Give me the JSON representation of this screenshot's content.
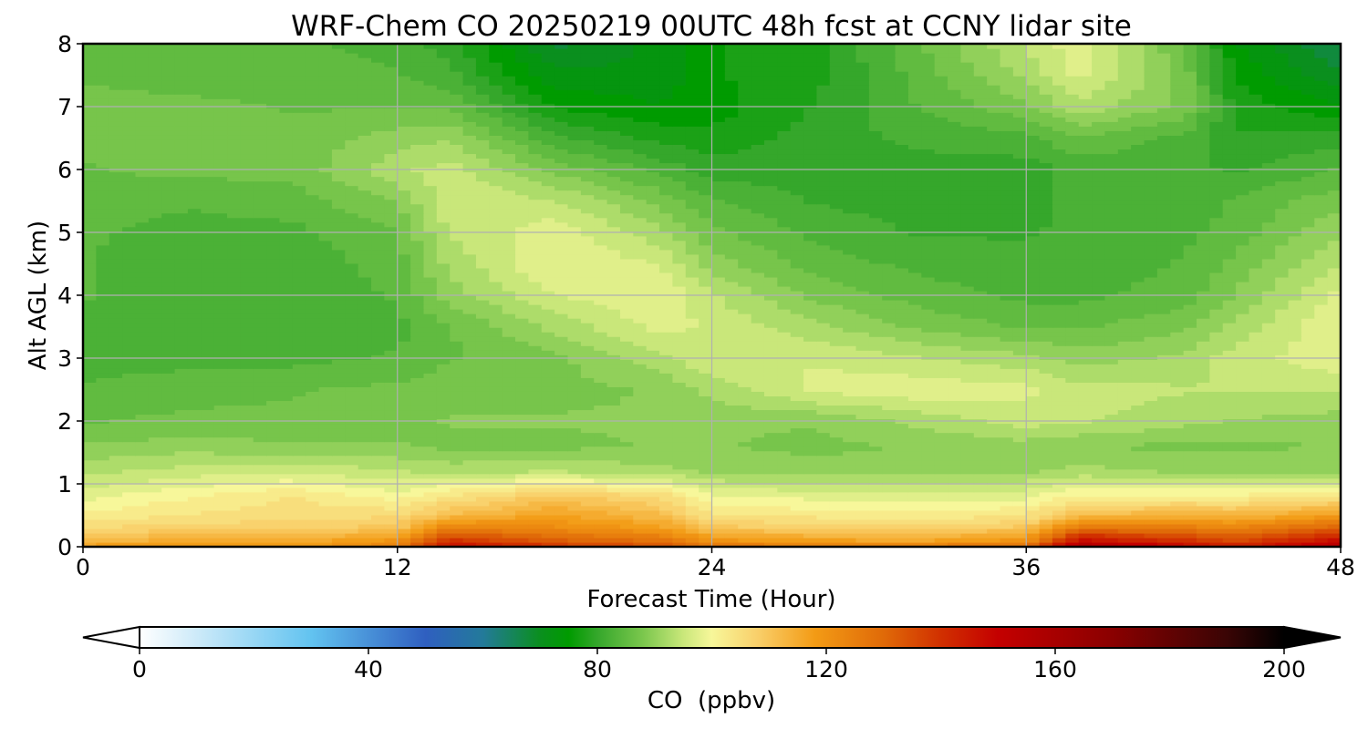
{
  "chart_data": {
    "type": "heatmap",
    "title": "WRF-Chem CO  20250219 00UTC 48h fcst at CCNY lidar site",
    "xlabel": "Forecast Time (Hour)",
    "ylabel": "Alt AGL (km)",
    "xlim": [
      0,
      48
    ],
    "ylim": [
      0,
      8
    ],
    "xticks": [
      0,
      12,
      24,
      36,
      48
    ],
    "yticks": [
      0,
      1,
      2,
      3,
      4,
      5,
      6,
      7,
      8
    ],
    "grid": true,
    "x": [
      0,
      4,
      8,
      12,
      14,
      18,
      22,
      24,
      28,
      32,
      36,
      38,
      42,
      44,
      48
    ],
    "y": [
      0,
      0.1,
      0.3,
      0.5,
      0.8,
      1.2,
      1.6,
      2.0,
      2.5,
      3.0,
      3.5,
      4.0,
      4.5,
      5.0,
      5.5,
      6.0,
      6.5,
      7.0,
      7.5,
      8.0
    ],
    "z": [
      [
        118,
        120,
        118,
        125,
        150,
        140,
        135,
        128,
        125,
        127,
        130,
        158,
        150,
        145,
        155
      ],
      [
        112,
        115,
        114,
        120,
        140,
        132,
        128,
        120,
        117,
        116,
        120,
        148,
        140,
        136,
        148
      ],
      [
        106,
        108,
        108,
        110,
        125,
        122,
        118,
        110,
        108,
        107,
        110,
        128,
        126,
        124,
        132
      ],
      [
        102,
        104,
        105,
        106,
        112,
        117,
        112,
        104,
        103,
        102,
        104,
        112,
        114,
        113,
        118
      ],
      [
        98,
        101,
        104,
        100,
        104,
        110,
        106,
        99,
        98,
        97,
        98,
        102,
        102,
        102,
        104
      ],
      [
        93,
        95,
        96,
        94,
        93,
        94,
        92,
        91,
        90,
        90,
        91,
        92,
        91,
        91,
        91
      ],
      [
        89,
        90,
        89,
        89,
        88,
        88,
        89,
        89,
        88,
        89,
        90,
        89,
        88,
        88,
        89
      ],
      [
        86,
        87,
        87,
        88,
        89,
        89,
        89,
        89,
        89,
        92,
        95,
        94,
        92,
        91,
        90
      ],
      [
        84,
        85,
        86,
        87,
        88,
        88,
        89,
        92,
        97,
        98,
        97,
        95,
        94,
        94,
        94
      ],
      [
        83,
        83,
        83,
        84,
        86,
        88,
        93,
        96,
        96,
        94,
        92,
        90,
        92,
        95,
        98
      ],
      [
        83,
        82,
        82,
        83,
        86,
        92,
        97,
        96,
        92,
        88,
        86,
        86,
        88,
        92,
        99
      ],
      [
        84,
        82,
        82,
        84,
        90,
        96,
        99,
        94,
        88,
        85,
        83,
        83,
        85,
        89,
        97
      ],
      [
        84,
        82,
        82,
        85,
        92,
        99,
        96,
        90,
        85,
        83,
        82,
        82,
        84,
        87,
        94
      ],
      [
        84,
        83,
        83,
        86,
        94,
        98,
        92,
        87,
        83,
        81,
        81,
        82,
        83,
        85,
        91
      ],
      [
        85,
        84,
        85,
        89,
        96,
        94,
        88,
        84,
        81,
        80,
        80,
        82,
        82,
        84,
        88
      ],
      [
        86,
        87,
        87,
        93,
        95,
        88,
        83,
        80,
        80,
        80,
        80,
        82,
        82,
        81,
        84
      ],
      [
        87,
        88,
        87,
        90,
        91,
        82,
        78,
        77,
        80,
        82,
        83,
        86,
        83,
        79,
        80
      ],
      [
        87,
        87,
        86,
        86,
        86,
        76,
        74,
        75,
        79,
        84,
        88,
        93,
        88,
        78,
        74
      ],
      [
        86,
        85,
        85,
        84,
        82,
        72,
        72,
        76,
        78,
        85,
        92,
        97,
        88,
        76,
        69
      ],
      [
        86,
        84,
        84,
        83,
        80,
        68,
        72,
        76,
        78,
        86,
        94,
        98,
        86,
        74,
        66
      ]
    ],
    "colorbar": {
      "label": "CO  (ppbv)",
      "ticks": [
        0,
        40,
        80,
        120,
        160,
        200
      ],
      "range": [
        0,
        200
      ],
      "extend": "both"
    }
  },
  "colors": {
    "stops": [
      {
        "v": 0,
        "c": "#ffffff"
      },
      {
        "v": 10,
        "c": "#cdeaf9"
      },
      {
        "v": 30,
        "c": "#62c3f0"
      },
      {
        "v": 50,
        "c": "#2f5fc0"
      },
      {
        "v": 60,
        "c": "#237a9a"
      },
      {
        "v": 70,
        "c": "#0a8f1e"
      },
      {
        "v": 75,
        "c": "#009b00"
      },
      {
        "v": 80,
        "c": "#35a72b"
      },
      {
        "v": 88,
        "c": "#7bc74d"
      },
      {
        "v": 95,
        "c": "#c9e77a"
      },
      {
        "v": 100,
        "c": "#f7f79a"
      },
      {
        "v": 108,
        "c": "#f9cf6a"
      },
      {
        "v": 118,
        "c": "#f39b15"
      },
      {
        "v": 130,
        "c": "#e06a08"
      },
      {
        "v": 140,
        "c": "#d13000"
      },
      {
        "v": 150,
        "c": "#c40000"
      },
      {
        "v": 170,
        "c": "#8a0000"
      },
      {
        "v": 190,
        "c": "#3a0505"
      },
      {
        "v": 200,
        "c": "#000000"
      }
    ]
  }
}
